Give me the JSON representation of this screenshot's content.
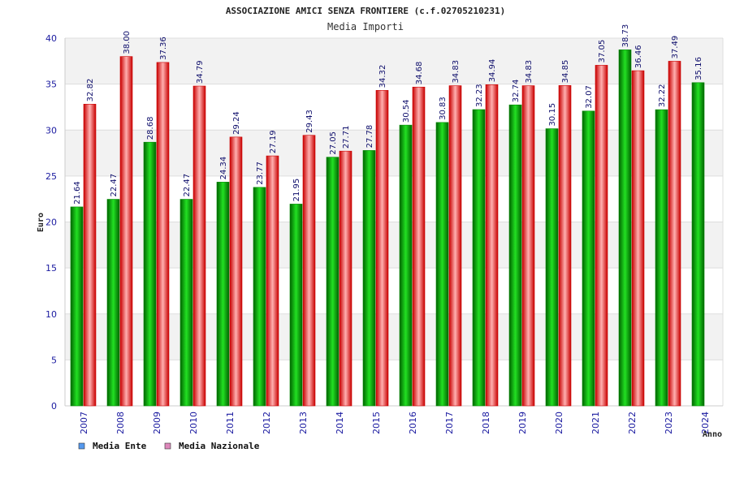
{
  "chart_data": {
    "type": "bar",
    "title": "ASSOCIAZIONE AMICI SENZA FRONTIERE (c.f.02705210231)",
    "subtitle": "Media Importi",
    "xlabel": "Anno",
    "ylabel": "Euro",
    "ylim": [
      0,
      40
    ],
    "yticks": [
      "0",
      "5",
      "10",
      "15",
      "20",
      "25",
      "30",
      "35",
      "40"
    ],
    "grid": true,
    "legend_position": "bottom-left",
    "categories": [
      "2007",
      "2008",
      "2009",
      "2010",
      "2011",
      "2012",
      "2013",
      "2014",
      "2015",
      "2016",
      "2017",
      "2018",
      "2019",
      "2020",
      "2021",
      "2022",
      "2023",
      "2024"
    ],
    "series": [
      {
        "name": "Media Ente",
        "color": "#00b400",
        "legend_color": "#5599ee",
        "values": [
          21.64,
          22.47,
          28.68,
          22.47,
          24.34,
          23.77,
          21.95,
          27.05,
          27.78,
          30.54,
          30.83,
          32.23,
          32.74,
          30.15,
          32.07,
          38.73,
          32.22,
          35.16
        ],
        "labels": [
          "21.64",
          "22.47",
          "28.68",
          "22.47",
          "24.34",
          "23.77",
          "21.95",
          "27.05",
          "27.78",
          "30.54",
          "30.83",
          "32.23",
          "32.74",
          "30.15",
          "32.07",
          "38.73",
          "32.22",
          "35.16"
        ]
      },
      {
        "name": "Media Nazionale",
        "color": "#ee1111",
        "legend_color": "#dd88bb",
        "values": [
          32.82,
          38.0,
          37.36,
          34.79,
          29.24,
          27.19,
          29.43,
          27.71,
          34.32,
          34.68,
          34.83,
          34.94,
          34.83,
          34.85,
          37.05,
          36.46,
          37.49,
          null
        ],
        "labels": [
          "32.82",
          "38.00",
          "37.36",
          "34.79",
          "29.24",
          "27.19",
          "29.43",
          "27.71",
          "34.32",
          "34.68",
          "34.83",
          "34.94",
          "34.83",
          "34.85",
          "37.05",
          "36.46",
          "37.49",
          null
        ]
      }
    ]
  }
}
